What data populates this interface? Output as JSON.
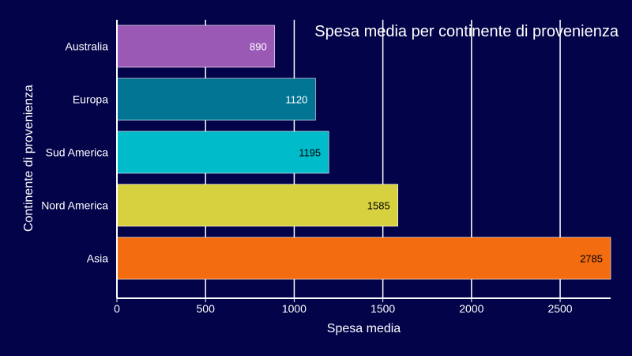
{
  "chart_data": {
    "type": "bar",
    "orientation": "horizontal",
    "title": "Spesa media per continente di provenienza",
    "xlabel": "Spesa media",
    "ylabel": "Continente di provenienza",
    "categories": [
      "Australia",
      "Europa",
      "Sud America",
      "Nord America",
      "Asia"
    ],
    "values": [
      890,
      1120,
      1195,
      1585,
      2785
    ],
    "data_labels": [
      "890",
      "1120",
      "1195",
      "1585",
      "2785"
    ],
    "colors": [
      "#9b59b6",
      "#027594",
      "#00bbc9",
      "#d8d13f",
      "#f36c10"
    ],
    "label_colors": [
      "#ffffff",
      "#ffffff",
      "#000000",
      "#000000",
      "#000000"
    ],
    "xlim": [
      0,
      2785
    ],
    "xticks": [
      0,
      500,
      1000,
      1500,
      2000,
      2500
    ],
    "xtick_labels": [
      "0",
      "500",
      "1000",
      "1500",
      "2000",
      "2500"
    ],
    "grid": "vertical",
    "background": "#03034a",
    "gridline_color": "#ffffff"
  }
}
